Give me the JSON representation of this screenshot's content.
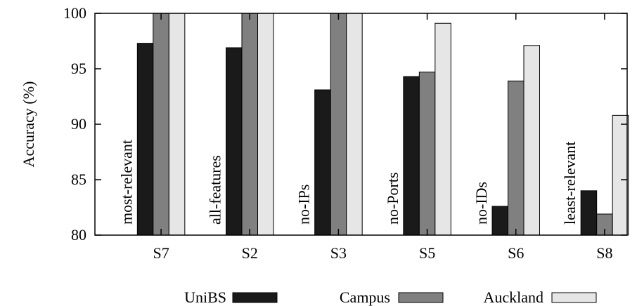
{
  "chart_data": {
    "type": "bar",
    "title": "",
    "xlabel": "",
    "ylabel": "Accuracy (%)",
    "ylim": [
      80,
      100
    ],
    "yticks": [
      "80",
      "85",
      "90",
      "95",
      "100"
    ],
    "grid": false,
    "legend_position": "bottom",
    "categories": [
      "S7",
      "S2",
      "S3",
      "S5",
      "S6",
      "S8"
    ],
    "group_labels": [
      "most-relevant",
      "all-features",
      "no-IPs",
      "no-Ports",
      "no-IDs",
      "least-relevant"
    ],
    "series": [
      {
        "name": "UniBS",
        "color": "#1a1a1a",
        "values": [
          97.3,
          96.9,
          93.1,
          94.3,
          82.6,
          84.0
        ]
      },
      {
        "name": "Campus",
        "color": "#808080",
        "values": [
          100,
          100,
          100,
          94.7,
          93.9,
          81.9
        ]
      },
      {
        "name": "Auckland",
        "color": "#e6e6e6",
        "values": [
          100,
          100,
          100,
          99.1,
          97.1,
          90.8
        ]
      }
    ]
  }
}
